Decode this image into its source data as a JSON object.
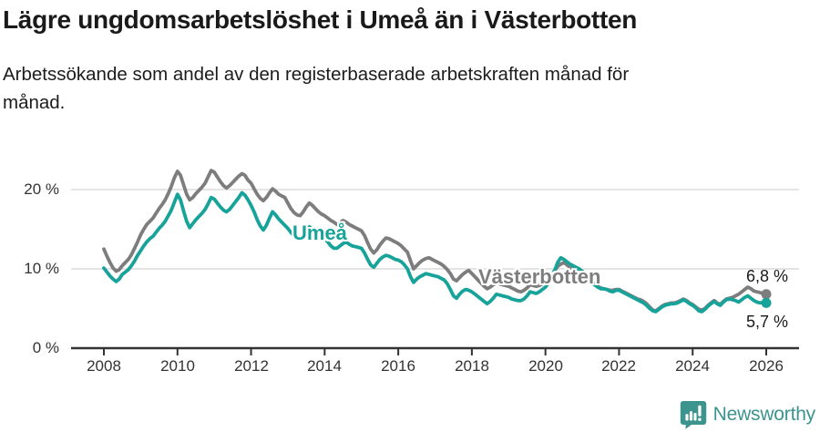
{
  "chart_data": {
    "type": "line",
    "title": "Lägre ungdomsarbetslöshet i Umeå än i Västerbotten",
    "subtitle": "Arbetssökande som andel av den registerbaserade arbetskraften månad för\nmånad.",
    "x_range": [
      "2008-01",
      "2026-01"
    ],
    "x_frequency": "monthly",
    "x_tick_labels": [
      "2008",
      "2010",
      "2012",
      "2014",
      "2016",
      "2018",
      "2020",
      "2022",
      "2024",
      "2026"
    ],
    "y_tick_labels": [
      "20 %",
      "10 %",
      "0 %"
    ],
    "y_tick_values": [
      20,
      10,
      0
    ],
    "ylim": [
      0,
      24.4
    ],
    "grid": "horizontal",
    "legend": "inline-series-labels",
    "series": [
      {
        "name": "Västerbotten",
        "color": "#7d7d7d",
        "end_label": "6,8 %",
        "end_value": 6.8,
        "values": [
          12.5,
          11.6,
          10.8,
          10.1,
          9.7,
          9.9,
          10.4,
          10.8,
          11.2,
          11.8,
          12.6,
          13.4,
          14.3,
          15.0,
          15.6,
          16.0,
          16.4,
          17.0,
          17.6,
          18.1,
          18.7,
          19.5,
          20.4,
          21.5,
          22.3,
          21.8,
          20.6,
          19.4,
          18.7,
          19.0,
          19.5,
          19.9,
          20.3,
          20.8,
          21.6,
          22.4,
          22.2,
          21.6,
          21.0,
          20.5,
          20.2,
          20.5,
          20.9,
          21.3,
          21.7,
          22.0,
          21.8,
          21.2,
          20.8,
          20.1,
          19.4,
          18.9,
          18.6,
          19.0,
          19.6,
          20.1,
          19.8,
          19.4,
          19.2,
          19.0,
          18.3,
          17.6,
          17.1,
          16.8,
          16.7,
          17.2,
          17.8,
          18.3,
          18.0,
          17.6,
          17.2,
          16.9,
          16.7,
          16.4,
          16.1,
          15.9,
          15.6,
          15.8,
          16.1,
          15.9,
          15.6,
          15.4,
          15.2,
          15.0,
          14.8,
          14.2,
          13.3,
          12.5,
          12.0,
          12.4,
          13.0,
          13.5,
          13.9,
          13.8,
          13.6,
          13.4,
          13.2,
          12.9,
          12.5,
          12.1,
          11.0,
          10.0,
          10.4,
          10.8,
          11.1,
          11.3,
          11.4,
          11.2,
          11.0,
          10.8,
          10.6,
          10.3,
          9.9,
          9.4,
          8.7,
          8.5,
          8.9,
          9.3,
          9.6,
          9.8,
          9.4,
          9.0,
          8.6,
          8.2,
          7.8,
          7.5,
          7.7,
          8.0,
          8.2,
          8.1,
          8.0,
          7.9,
          7.8,
          7.6,
          7.4,
          7.2,
          7.1,
          7.3,
          7.6,
          8.0,
          7.9,
          7.8,
          7.9,
          8.1,
          8.4,
          8.7,
          9.2,
          9.8,
          10.3,
          10.6,
          10.8,
          10.5,
          10.2,
          10.0,
          9.9,
          9.8,
          9.5,
          9.2,
          8.9,
          8.5,
          8.1,
          7.8,
          7.6,
          7.5,
          7.4,
          7.3,
          7.3,
          7.4,
          7.4,
          7.2,
          7.0,
          6.8,
          6.6,
          6.4,
          6.2,
          6.1,
          5.9,
          5.6,
          5.2,
          4.8,
          4.7,
          5.0,
          5.3,
          5.5,
          5.6,
          5.7,
          5.7,
          5.8,
          6.0,
          6.2,
          6.0,
          5.7,
          5.5,
          5.2,
          4.9,
          4.8,
          5.0,
          5.4,
          5.7,
          6.0,
          5.7,
          5.5,
          5.9,
          6.2,
          6.3,
          6.4,
          6.6,
          6.8,
          7.1,
          7.4,
          7.7,
          7.5,
          7.2,
          7.1,
          7.0,
          6.9,
          6.8
        ]
      },
      {
        "name": "Umeå",
        "color": "#18a39a",
        "end_label": "5,7 %",
        "end_value": 5.7,
        "values": [
          10.1,
          9.6,
          9.1,
          8.7,
          8.4,
          8.7,
          9.3,
          9.6,
          9.9,
          10.4,
          11.0,
          11.7,
          12.3,
          12.9,
          13.4,
          13.8,
          14.1,
          14.6,
          15.1,
          15.5,
          16.0,
          16.7,
          17.4,
          18.4,
          19.4,
          18.7,
          17.3,
          16.0,
          15.2,
          15.7,
          16.2,
          16.6,
          17.0,
          17.5,
          18.2,
          19.0,
          18.8,
          18.3,
          17.8,
          17.4,
          17.2,
          17.5,
          18.0,
          18.5,
          19.0,
          19.6,
          19.3,
          18.7,
          18.0,
          17.2,
          16.2,
          15.4,
          14.9,
          15.5,
          16.4,
          17.2,
          16.8,
          16.3,
          15.9,
          15.5,
          15.1,
          14.6,
          14.2,
          13.9,
          13.8,
          14.3,
          14.8,
          15.3,
          15.0,
          14.6,
          14.2,
          13.9,
          13.8,
          13.4,
          12.9,
          12.6,
          12.6,
          12.9,
          13.2,
          13.4,
          13.1,
          12.9,
          12.8,
          12.7,
          12.6,
          12.0,
          11.2,
          10.5,
          10.2,
          10.7,
          11.2,
          11.5,
          11.7,
          11.6,
          11.4,
          11.2,
          11.1,
          10.9,
          10.5,
          10.0,
          9.0,
          8.3,
          8.7,
          9.0,
          9.2,
          9.4,
          9.3,
          9.2,
          9.1,
          9.0,
          8.8,
          8.6,
          8.1,
          7.4,
          6.6,
          6.3,
          6.8,
          7.2,
          7.4,
          7.3,
          7.1,
          6.8,
          6.5,
          6.2,
          5.9,
          5.6,
          5.9,
          6.3,
          6.8,
          6.7,
          6.6,
          6.5,
          6.4,
          6.2,
          6.1,
          6.0,
          6.0,
          6.2,
          6.6,
          7.1,
          7.0,
          6.9,
          7.1,
          7.4,
          7.7,
          8.2,
          9.0,
          9.8,
          10.8,
          11.4,
          11.2,
          10.9,
          10.6,
          10.4,
          10.2,
          10.0,
          9.7,
          9.3,
          8.9,
          8.4,
          8.0,
          7.7,
          7.5,
          7.5,
          7.4,
          7.2,
          7.1,
          7.3,
          7.3,
          7.1,
          6.9,
          6.7,
          6.5,
          6.3,
          6.1,
          5.9,
          5.7,
          5.4,
          5.0,
          4.7,
          4.6,
          4.9,
          5.2,
          5.4,
          5.5,
          5.6,
          5.6,
          5.7,
          5.9,
          6.1,
          5.9,
          5.6,
          5.4,
          5.1,
          4.7,
          4.6,
          4.9,
          5.3,
          5.6,
          5.9,
          5.6,
          5.4,
          5.8,
          6.1,
          6.2,
          6.1,
          6.0,
          5.8,
          6.1,
          6.4,
          6.6,
          6.3,
          6.0,
          5.8,
          5.7,
          5.8,
          5.7
        ]
      }
    ],
    "colors": {
      "umea_line": "#18a39a",
      "vasterbotten_line": "#7d7d7d",
      "gridline": "#dcdcdc",
      "axis": "#333333",
      "brand_teal": "#3b948d"
    }
  },
  "footer": {
    "brand": "Newsworthy"
  }
}
